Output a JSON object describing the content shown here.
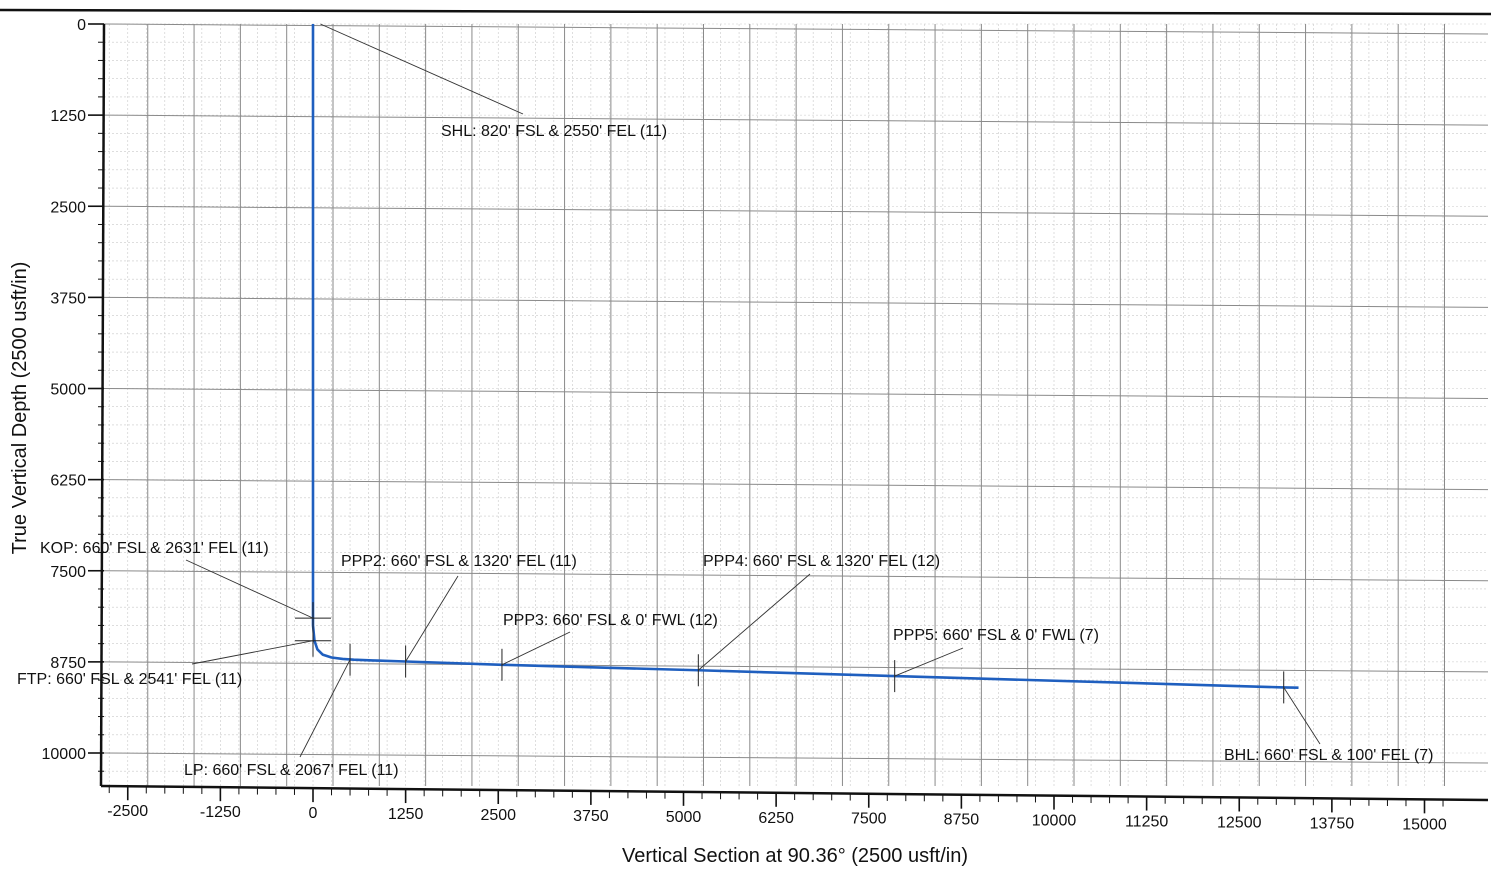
{
  "chart_data": {
    "type": "line",
    "title": "",
    "xlabel": "Vertical Section at 90.36° (2500 usft/in)",
    "ylabel": "True Vertical Depth (2500 usft/in)",
    "xlim": [
      -2800,
      15300
    ],
    "ylim": [
      10500,
      -100
    ],
    "y_inverted": true,
    "grid": true,
    "x_ticks": [
      -2500,
      -1250,
      0,
      1250,
      2500,
      3750,
      5000,
      6250,
      7500,
      8750,
      10000,
      11250,
      12500,
      13750,
      15000
    ],
    "y_ticks": [
      0,
      1250,
      2500,
      3750,
      5000,
      6250,
      7500,
      8750,
      10000
    ],
    "line_color": "#1f5fbf",
    "series": [
      {
        "x": [
          0,
          0,
          0,
          20,
          60,
          130,
          250,
          400,
          550,
          800,
          1250,
          2550,
          5200,
          7850,
          13100,
          13300
        ],
        "y": [
          0,
          5000,
          8250,
          8460,
          8580,
          8650,
          8690,
          8710,
          8720,
          8730,
          8745,
          8790,
          8865,
          8945,
          9100,
          9104
        ]
      }
    ],
    "annotations": [
      {
        "text": "SHL: 820' FSL & 2550' FEL (11)",
        "x": 100,
        "y": 0
      },
      {
        "text": "KOP: 660' FSL & 2631' FEL (11)",
        "x": 0,
        "y": 8150
      },
      {
        "text": "FTP: 660' FSL & 2541' FEL (11)",
        "x": 0,
        "y": 8460
      },
      {
        "text": "LP: 660' FSL & 2067' FEL (11)",
        "x": 500,
        "y": 8720
      },
      {
        "text": "PPP2: 660' FSL & 1320' FEL (11)",
        "x": 1250,
        "y": 8745
      },
      {
        "text": "PPP3: 660' FSL & 0' FWL (12)",
        "x": 2550,
        "y": 8790
      },
      {
        "text": "PPP4: 660' FSL & 1320' FEL (12)",
        "x": 5200,
        "y": 8865
      },
      {
        "text": "PPP5: 660' FSL & 0' FWL (7)",
        "x": 7850,
        "y": 8945
      },
      {
        "text": "BHL: 660' FSL & 100' FEL (7)",
        "x": 13100,
        "y": 9100
      }
    ]
  }
}
